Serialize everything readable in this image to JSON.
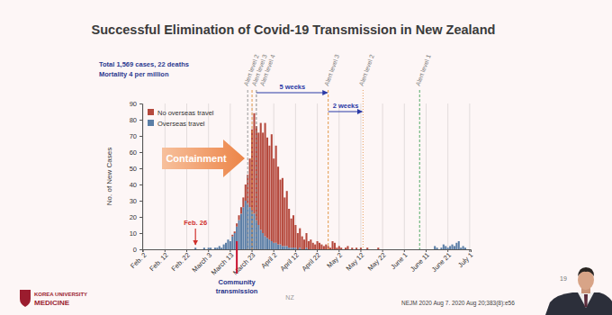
{
  "chart_data": {
    "type": "bar",
    "title": "Successful Elimination of Covid-19 Transmission in New Zealand",
    "subtitle": [
      "Total 1,569 cases, 22 deaths",
      "Mortality 4 per million"
    ],
    "y_label": "No. of New Cases",
    "categories": [
      "Feb. 2",
      null,
      null,
      null,
      null,
      null,
      null,
      null,
      null,
      null,
      "Feb. 12",
      null,
      null,
      null,
      null,
      null,
      null,
      null,
      null,
      null,
      "Feb. 22",
      null,
      null,
      null,
      null,
      null,
      null,
      null,
      null,
      null,
      "March 3",
      null,
      null,
      null,
      null,
      null,
      null,
      null,
      null,
      null,
      "March 13",
      null,
      null,
      null,
      null,
      null,
      null,
      null,
      null,
      null,
      "March 23",
      null,
      null,
      null,
      null,
      null,
      null,
      null,
      null,
      null,
      "April 2",
      null,
      null,
      null,
      null,
      null,
      null,
      null,
      null,
      null,
      "April 12",
      null,
      null,
      null,
      null,
      null,
      null,
      null,
      null,
      null,
      "April 22",
      null,
      null,
      null,
      null,
      null,
      null,
      null,
      null,
      null,
      "May 2",
      null,
      null,
      null,
      null,
      null,
      null,
      null,
      null,
      null,
      "May 12",
      null,
      null,
      null,
      null,
      null,
      null,
      null,
      null,
      null,
      "May 22",
      null,
      null,
      null,
      null,
      null,
      null,
      null,
      null,
      null,
      "June 1",
      null,
      null,
      null,
      null,
      null,
      null,
      null,
      null,
      null,
      "June 11",
      null,
      null,
      null,
      null,
      null,
      null,
      null,
      null,
      null,
      "June 21",
      null,
      null,
      null,
      null,
      null,
      null,
      null,
      null,
      null,
      "July 1"
    ],
    "series": [
      {
        "name": "Overseas travel",
        "color": "#5b7ea6",
        "values": [
          0,
          0,
          0,
          0,
          0,
          0,
          0,
          0,
          0,
          0,
          0,
          0,
          0,
          0,
          0,
          0,
          0,
          0,
          0,
          0,
          0,
          0,
          0,
          0,
          1,
          0,
          0,
          0,
          1,
          0,
          1,
          1,
          0,
          1,
          1,
          2,
          1,
          3,
          4,
          6,
          5,
          8,
          10,
          14,
          18,
          22,
          26,
          30,
          28,
          26,
          24,
          22,
          18,
          15,
          12,
          10,
          8,
          7,
          6,
          5,
          4,
          4,
          3,
          3,
          2,
          2,
          2,
          1,
          1,
          1,
          1,
          0,
          1,
          0,
          0,
          1,
          0,
          0,
          0,
          0,
          0,
          0,
          0,
          0,
          0,
          0,
          0,
          0,
          0,
          0,
          0,
          0,
          0,
          0,
          0,
          0,
          0,
          0,
          0,
          0,
          0,
          0,
          0,
          0,
          0,
          0,
          0,
          0,
          0,
          0,
          0,
          0,
          0,
          0,
          0,
          0,
          0,
          0,
          0,
          0,
          0,
          0,
          0,
          0,
          0,
          0,
          0,
          0,
          0,
          0,
          0,
          0,
          0,
          0,
          2,
          1,
          0,
          1,
          3,
          2,
          1,
          2,
          3,
          2,
          4,
          5,
          1,
          2,
          1,
          0,
          0
        ]
      },
      {
        "name": "No overseas travel",
        "color": "#b5493d",
        "values": [
          0,
          0,
          0,
          0,
          0,
          0,
          0,
          0,
          0,
          0,
          0,
          0,
          0,
          0,
          0,
          0,
          0,
          0,
          0,
          0,
          0,
          0,
          0,
          0,
          0,
          0,
          0,
          0,
          0,
          0,
          0,
          0,
          0,
          0,
          0,
          0,
          0,
          0,
          0,
          0,
          0,
          1,
          1,
          2,
          3,
          4,
          6,
          10,
          18,
          30,
          50,
          62,
          58,
          57,
          66,
          62,
          70,
          62,
          58,
          66,
          52,
          60,
          48,
          40,
          42,
          30,
          34,
          24,
          18,
          20,
          14,
          10,
          12,
          8,
          6,
          9,
          5,
          6,
          4,
          3,
          5,
          4,
          3,
          2,
          3,
          2,
          1,
          5,
          4,
          1,
          2,
          1,
          0,
          1,
          2,
          0,
          1,
          0,
          1,
          0,
          1,
          0,
          0,
          1,
          0,
          0,
          0,
          0,
          1,
          0,
          0,
          0,
          0,
          0,
          0,
          0,
          0,
          0,
          0,
          0,
          0,
          0,
          0,
          0,
          0,
          0,
          0,
          0,
          0,
          0,
          0,
          0,
          0,
          0,
          0,
          0,
          0,
          0,
          0,
          0,
          0,
          0,
          0,
          0,
          0,
          0,
          0,
          0,
          0,
          0,
          0
        ]
      }
    ],
    "stacked": true,
    "legend": "top-left",
    "grid": "x",
    "ylim": [
      0,
      90
    ],
    "yticks": [
      0,
      10,
      20,
      30,
      40,
      50,
      60,
      70,
      80,
      90
    ],
    "alert_levels": [
      {
        "label": "Alert level 2",
        "index": 48,
        "color": "#9a9a9a",
        "line_style": "dashed"
      },
      {
        "label": "Alert level 3",
        "index": 50,
        "color": "#e39a4b",
        "line_style": "dashed"
      },
      {
        "label": "Alert level 4",
        "index": 52,
        "color": "#8a8a8a",
        "line_style": "dashed"
      },
      {
        "label": "Alert level 3",
        "index": 85,
        "color": "#e39a4b",
        "line_style": "dashed"
      },
      {
        "label": "Alert level 2",
        "index": 101,
        "color": "#e8a060",
        "line_style": "dotted"
      },
      {
        "label": "Alert level 1",
        "index": 127,
        "color": "#55aa66",
        "line_style": "dashed"
      }
    ],
    "spans": [
      {
        "label": "5 weeks",
        "from": 52,
        "to": 85
      },
      {
        "label": "2 weeks",
        "from": 85,
        "to": 101
      }
    ],
    "callouts": [
      {
        "label": "Feb. 26",
        "index": 24,
        "color": "#d0312d"
      },
      {
        "label": [
          "Community",
          "transmission"
        ],
        "index": 43,
        "color": "#c8102e"
      }
    ],
    "banner": "Containment"
  },
  "slide": {
    "logo": [
      "KOREA UNIVERSITY",
      "MEDICINE"
    ],
    "section": "NZ",
    "page": "19",
    "citation": "NEJM 2020 Aug 7. 2020 Aug 20;383(8):e56"
  }
}
